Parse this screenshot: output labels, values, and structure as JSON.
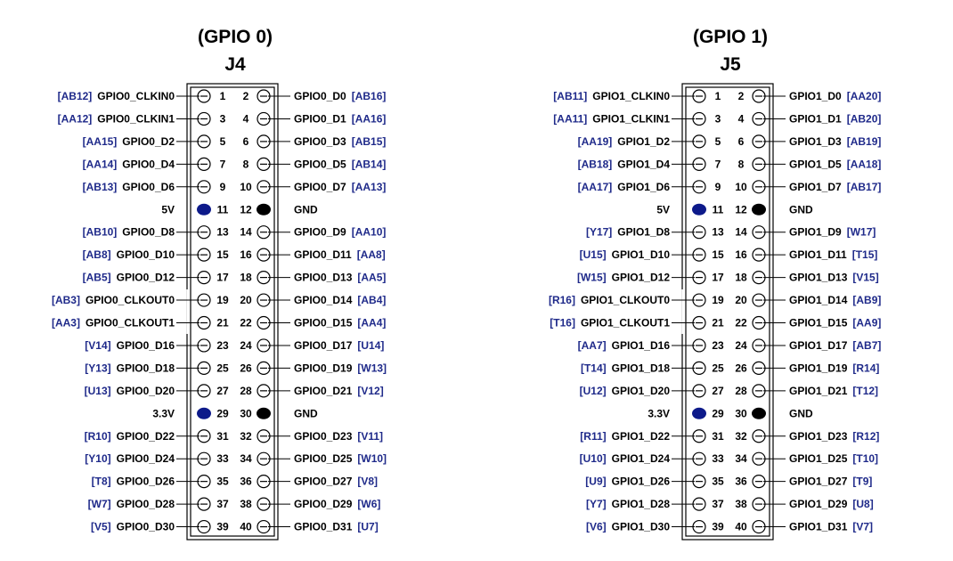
{
  "colors": {
    "ball": "#1f2a8a",
    "power_pin": "#0d1a8a",
    "gnd_pin": "#000000",
    "line": "#000000"
  },
  "headers": [
    {
      "group_title": "(GPIO 0)",
      "connector": "J4",
      "rows": [
        {
          "lb": "AB12",
          "ls": "GPIO0_CLKIN0",
          "ln": "1",
          "lt": "sig",
          "rn": "2",
          "rt": "sig",
          "rs": "GPIO0_D0",
          "rb": "AB16"
        },
        {
          "lb": "AA12",
          "ls": "GPIO0_CLKIN1",
          "ln": "3",
          "lt": "sig",
          "rn": "4",
          "rt": "sig",
          "rs": "GPIO0_D1",
          "rb": "AA16"
        },
        {
          "lb": "AA15",
          "ls": "GPIO0_D2",
          "ln": "5",
          "lt": "sig",
          "rn": "6",
          "rt": "sig",
          "rs": "GPIO0_D3",
          "rb": "AB15"
        },
        {
          "lb": "AA14",
          "ls": "GPIO0_D4",
          "ln": "7",
          "lt": "sig",
          "rn": "8",
          "rt": "sig",
          "rs": "GPIO0_D5",
          "rb": "AB14"
        },
        {
          "lb": "AB13",
          "ls": "GPIO0_D6",
          "ln": "9",
          "lt": "sig",
          "rn": "10",
          "rt": "sig",
          "rs": "GPIO0_D7",
          "rb": "AA13"
        },
        {
          "lb": "",
          "ls": "5V",
          "ln": "11",
          "lt": "power",
          "rn": "12",
          "rt": "gnd",
          "rs": "GND",
          "rb": ""
        },
        {
          "lb": "AB10",
          "ls": "GPIO0_D8",
          "ln": "13",
          "lt": "sig",
          "rn": "14",
          "rt": "sig",
          "rs": "GPIO0_D9",
          "rb": "AA10"
        },
        {
          "lb": "AB8",
          "ls": "GPIO0_D10",
          "ln": "15",
          "lt": "sig",
          "rn": "16",
          "rt": "sig",
          "rs": "GPIO0_D11",
          "rb": "AA8"
        },
        {
          "lb": "AB5",
          "ls": "GPIO0_D12",
          "ln": "17",
          "lt": "sig",
          "rn": "18",
          "rt": "sig",
          "rs": "GPIO0_D13",
          "rb": "AA5"
        },
        {
          "lb": "AB3",
          "ls": "GPIO0_CLKOUT0",
          "ln": "19",
          "lt": "sig",
          "rn": "20",
          "rt": "sig",
          "rs": "GPIO0_D14",
          "rb": "AB4"
        },
        {
          "lb": "AA3",
          "ls": "GPIO0_CLKOUT1",
          "ln": "21",
          "lt": "sig",
          "rn": "22",
          "rt": "sig",
          "rs": "GPIO0_D15",
          "rb": "AA4"
        },
        {
          "lb": "V14",
          "ls": "GPIO0_D16",
          "ln": "23",
          "lt": "sig",
          "rn": "24",
          "rt": "sig",
          "rs": "GPIO0_D17",
          "rb": "U14"
        },
        {
          "lb": "Y13",
          "ls": "GPIO0_D18",
          "ln": "25",
          "lt": "sig",
          "rn": "26",
          "rt": "sig",
          "rs": "GPIO0_D19",
          "rb": "W13"
        },
        {
          "lb": "U13",
          "ls": "GPIO0_D20",
          "ln": "27",
          "lt": "sig",
          "rn": "28",
          "rt": "sig",
          "rs": "GPIO0_D21",
          "rb": "V12"
        },
        {
          "lb": "",
          "ls": "3.3V",
          "ln": "29",
          "lt": "power",
          "rn": "30",
          "rt": "gnd",
          "rs": "GND",
          "rb": ""
        },
        {
          "lb": "R10",
          "ls": "GPIO0_D22",
          "ln": "31",
          "lt": "sig",
          "rn": "32",
          "rt": "sig",
          "rs": "GPIO0_D23",
          "rb": "V11"
        },
        {
          "lb": "Y10",
          "ls": "GPIO0_D24",
          "ln": "33",
          "lt": "sig",
          "rn": "34",
          "rt": "sig",
          "rs": "GPIO0_D25",
          "rb": "W10"
        },
        {
          "lb": "T8",
          "ls": "GPIO0_D26",
          "ln": "35",
          "lt": "sig",
          "rn": "36",
          "rt": "sig",
          "rs": "GPIO0_D27",
          "rb": "V8"
        },
        {
          "lb": "W7",
          "ls": "GPIO0_D28",
          "ln": "37",
          "lt": "sig",
          "rn": "38",
          "rt": "sig",
          "rs": "GPIO0_D29",
          "rb": "W6"
        },
        {
          "lb": "V5",
          "ls": "GPIO0_D30",
          "ln": "39",
          "lt": "sig",
          "rn": "40",
          "rt": "sig",
          "rs": "GPIO0_D31",
          "rb": "U7"
        }
      ]
    },
    {
      "group_title": "(GPIO 1)",
      "connector": "J5",
      "rows": [
        {
          "lb": "AB11",
          "ls": "GPIO1_CLKIN0",
          "ln": "1",
          "lt": "sig",
          "rn": "2",
          "rt": "sig",
          "rs": "GPIO1_D0",
          "rb": "AA20"
        },
        {
          "lb": "AA11",
          "ls": "GPIO1_CLKIN1",
          "ln": "3",
          "lt": "sig",
          "rn": "4",
          "rt": "sig",
          "rs": "GPIO1_D1",
          "rb": "AB20"
        },
        {
          "lb": "AA19",
          "ls": "GPIO1_D2",
          "ln": "5",
          "lt": "sig",
          "rn": "6",
          "rt": "sig",
          "rs": "GPIO1_D3",
          "rb": "AB19"
        },
        {
          "lb": "AB18",
          "ls": "GPIO1_D4",
          "ln": "7",
          "lt": "sig",
          "rn": "8",
          "rt": "sig",
          "rs": "GPIO1_D5",
          "rb": "AA18"
        },
        {
          "lb": "AA17",
          "ls": "GPIO1_D6",
          "ln": "9",
          "lt": "sig",
          "rn": "10",
          "rt": "sig",
          "rs": "GPIO1_D7",
          "rb": "AB17"
        },
        {
          "lb": "",
          "ls": "5V",
          "ln": "11",
          "lt": "power",
          "rn": "12",
          "rt": "gnd",
          "rs": "GND",
          "rb": ""
        },
        {
          "lb": "Y17",
          "ls": "GPIO1_D8",
          "ln": "13",
          "lt": "sig",
          "rn": "14",
          "rt": "sig",
          "rs": "GPIO1_D9",
          "rb": "W17"
        },
        {
          "lb": "U15",
          "ls": "GPIO1_D10",
          "ln": "15",
          "lt": "sig",
          "rn": "16",
          "rt": "sig",
          "rs": "GPIO1_D11",
          "rb": "T15"
        },
        {
          "lb": "W15",
          "ls": "GPIO1_D12",
          "ln": "17",
          "lt": "sig",
          "rn": "18",
          "rt": "sig",
          "rs": "GPIO1_D13",
          "rb": "V15"
        },
        {
          "lb": "R16",
          "ls": "GPIO1_CLKOUT0",
          "ln": "19",
          "lt": "sig",
          "rn": "20",
          "rt": "sig",
          "rs": "GPIO1_D14",
          "rb": "AB9"
        },
        {
          "lb": "T16",
          "ls": "GPIO1_CLKOUT1",
          "ln": "21",
          "lt": "sig",
          "rn": "22",
          "rt": "sig",
          "rs": "GPIO1_D15",
          "rb": "AA9"
        },
        {
          "lb": "AA7",
          "ls": "GPIO1_D16",
          "ln": "23",
          "lt": "sig",
          "rn": "24",
          "rt": "sig",
          "rs": "GPIO1_D17",
          "rb": "AB7"
        },
        {
          "lb": "T14",
          "ls": "GPIO1_D18",
          "ln": "25",
          "lt": "sig",
          "rn": "26",
          "rt": "sig",
          "rs": "GPIO1_D19",
          "rb": "R14"
        },
        {
          "lb": "U12",
          "ls": "GPIO1_D20",
          "ln": "27",
          "lt": "sig",
          "rn": "28",
          "rt": "sig",
          "rs": "GPIO1_D21",
          "rb": "T12"
        },
        {
          "lb": "",
          "ls": "3.3V",
          "ln": "29",
          "lt": "power",
          "rn": "30",
          "rt": "gnd",
          "rs": "GND",
          "rb": ""
        },
        {
          "lb": "R11",
          "ls": "GPIO1_D22",
          "ln": "31",
          "lt": "sig",
          "rn": "32",
          "rt": "sig",
          "rs": "GPIO1_D23",
          "rb": "R12"
        },
        {
          "lb": "U10",
          "ls": "GPIO1_D24",
          "ln": "33",
          "lt": "sig",
          "rn": "34",
          "rt": "sig",
          "rs": "GPIO1_D25",
          "rb": "T10"
        },
        {
          "lb": "U9",
          "ls": "GPIO1_D26",
          "ln": "35",
          "lt": "sig",
          "rn": "36",
          "rt": "sig",
          "rs": "GPIO1_D27",
          "rb": "T9"
        },
        {
          "lb": "Y7",
          "ls": "GPIO1_D28",
          "ln": "37",
          "lt": "sig",
          "rn": "38",
          "rt": "sig",
          "rs": "GPIO1_D29",
          "rb": "U8"
        },
        {
          "lb": "V6",
          "ls": "GPIO1_D30",
          "ln": "39",
          "lt": "sig",
          "rn": "40",
          "rt": "sig",
          "rs": "GPIO1_D31",
          "rb": "V7"
        }
      ]
    }
  ]
}
